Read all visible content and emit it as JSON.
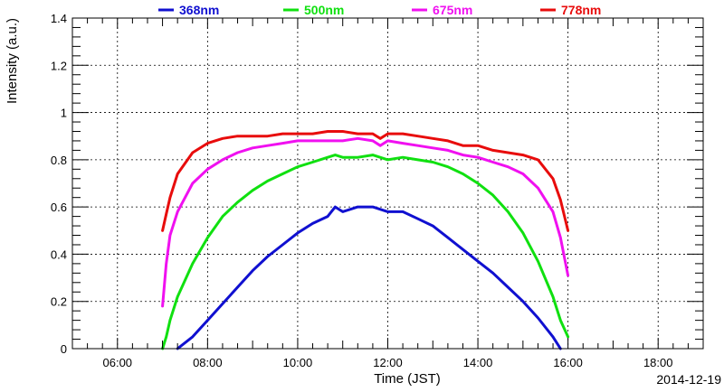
{
  "chart_data": {
    "type": "line",
    "title": "",
    "xlabel": "Time (JST)",
    "ylabel": "Intensity (a.u.)",
    "date_label": "2014-12-19",
    "xlim": [
      "05:00",
      "19:00"
    ],
    "ylim": [
      0,
      1.4
    ],
    "x_ticks": [
      "06:00",
      "08:00",
      "10:00",
      "12:00",
      "14:00",
      "16:00",
      "18:00"
    ],
    "y_ticks": [
      "0",
      "0.2",
      "0.4",
      "0.6",
      "0.8",
      "1",
      "1.2",
      "1.4"
    ],
    "grid": true,
    "legend_position": "top",
    "series": [
      {
        "name": "368nm",
        "color": "#1010d0",
        "x": [
          "07:20",
          "07:40",
          "08:00",
          "08:20",
          "08:40",
          "09:00",
          "09:20",
          "09:40",
          "10:00",
          "10:20",
          "10:40",
          "10:50",
          "11:00",
          "11:20",
          "11:40",
          "12:00",
          "12:20",
          "12:40",
          "13:00",
          "13:20",
          "13:40",
          "14:00",
          "14:20",
          "14:40",
          "15:00",
          "15:20",
          "15:40",
          "15:50"
        ],
        "values": [
          0.0,
          0.05,
          0.12,
          0.19,
          0.26,
          0.33,
          0.39,
          0.44,
          0.49,
          0.53,
          0.56,
          0.6,
          0.58,
          0.6,
          0.6,
          0.58,
          0.58,
          0.55,
          0.52,
          0.47,
          0.42,
          0.37,
          0.32,
          0.26,
          0.2,
          0.13,
          0.05,
          0.0
        ]
      },
      {
        "name": "500nm",
        "color": "#10e010",
        "x": [
          "07:00",
          "07:05",
          "07:10",
          "07:20",
          "07:40",
          "08:00",
          "08:20",
          "08:40",
          "09:00",
          "09:20",
          "09:40",
          "10:00",
          "10:20",
          "10:40",
          "10:50",
          "11:00",
          "11:20",
          "11:40",
          "12:00",
          "12:20",
          "12:40",
          "13:00",
          "13:20",
          "13:40",
          "14:00",
          "14:20",
          "14:40",
          "15:00",
          "15:20",
          "15:40",
          "15:50",
          "16:00"
        ],
        "values": [
          0.0,
          0.05,
          0.12,
          0.22,
          0.36,
          0.47,
          0.56,
          0.62,
          0.67,
          0.71,
          0.74,
          0.77,
          0.79,
          0.81,
          0.82,
          0.81,
          0.81,
          0.82,
          0.8,
          0.81,
          0.8,
          0.79,
          0.77,
          0.74,
          0.7,
          0.65,
          0.58,
          0.49,
          0.37,
          0.22,
          0.12,
          0.05
        ]
      },
      {
        "name": "675nm",
        "color": "#f010f0",
        "x": [
          "07:00",
          "07:05",
          "07:10",
          "07:20",
          "07:40",
          "08:00",
          "08:20",
          "08:40",
          "09:00",
          "09:20",
          "09:40",
          "10:00",
          "10:20",
          "10:40",
          "11:00",
          "11:20",
          "11:40",
          "11:50",
          "12:00",
          "12:20",
          "12:40",
          "13:00",
          "13:20",
          "13:40",
          "14:00",
          "14:20",
          "14:40",
          "15:00",
          "15:20",
          "15:40",
          "15:50",
          "16:00"
        ],
        "values": [
          0.18,
          0.36,
          0.48,
          0.58,
          0.7,
          0.76,
          0.8,
          0.83,
          0.85,
          0.86,
          0.87,
          0.88,
          0.88,
          0.88,
          0.88,
          0.89,
          0.88,
          0.86,
          0.88,
          0.87,
          0.86,
          0.85,
          0.84,
          0.82,
          0.81,
          0.79,
          0.77,
          0.74,
          0.68,
          0.58,
          0.47,
          0.31
        ]
      },
      {
        "name": "778nm",
        "color": "#e80c0c",
        "x": [
          "07:00",
          "07:05",
          "07:10",
          "07:20",
          "07:40",
          "08:00",
          "08:20",
          "08:40",
          "09:00",
          "09:20",
          "09:40",
          "10:00",
          "10:20",
          "10:40",
          "11:00",
          "11:20",
          "11:40",
          "11:50",
          "12:00",
          "12:20",
          "12:40",
          "13:00",
          "13:20",
          "13:40",
          "14:00",
          "14:20",
          "14:40",
          "15:00",
          "15:20",
          "15:40",
          "15:50",
          "16:00"
        ],
        "values": [
          0.5,
          0.57,
          0.64,
          0.74,
          0.83,
          0.87,
          0.89,
          0.9,
          0.9,
          0.9,
          0.91,
          0.91,
          0.91,
          0.92,
          0.92,
          0.91,
          0.91,
          0.89,
          0.91,
          0.91,
          0.9,
          0.89,
          0.88,
          0.86,
          0.86,
          0.84,
          0.83,
          0.82,
          0.8,
          0.72,
          0.63,
          0.5
        ]
      }
    ]
  }
}
